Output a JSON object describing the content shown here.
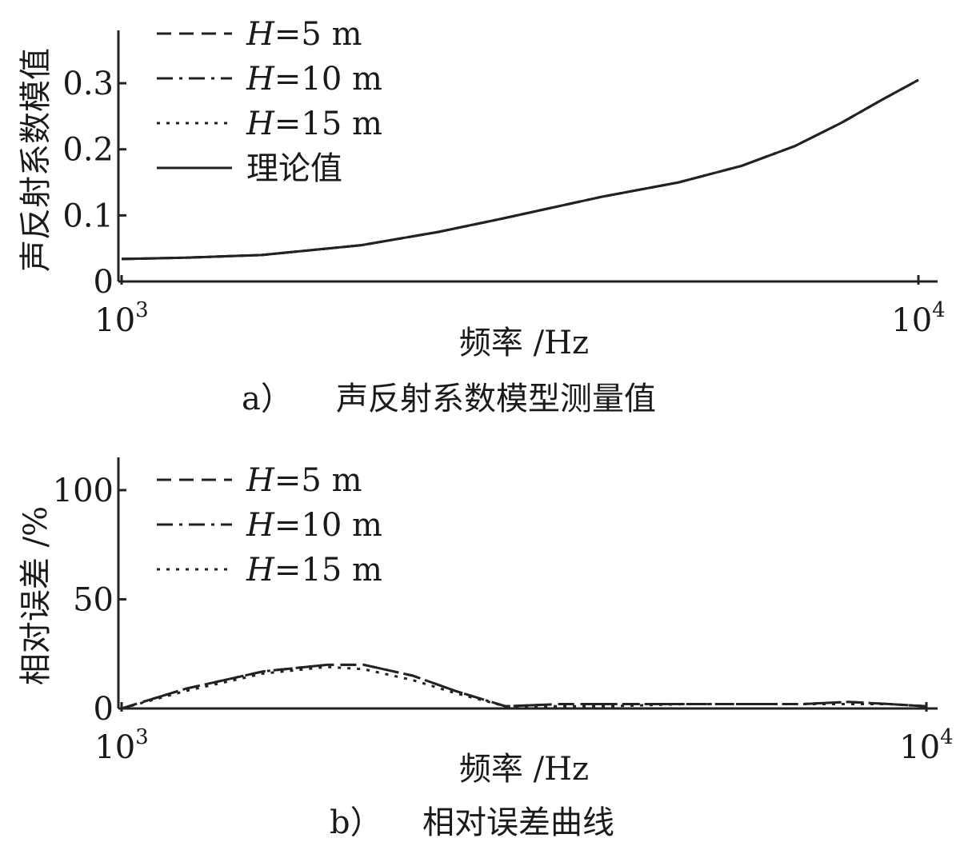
{
  "chart_data": [
    {
      "type": "line",
      "panel_label": "a）",
      "caption": "声反射系数模型测量值",
      "ylabel": "声反射系数模值",
      "xlabel": "频率 /Hz",
      "xscale": "log",
      "xlim": [
        1000,
        10000
      ],
      "ylim": [
        0,
        0.38
      ],
      "x_ticks": [
        {
          "base": "10",
          "exp": "3"
        },
        {
          "base": "10",
          "exp": "4"
        }
      ],
      "y_ticks": [
        "0",
        "0.1",
        "0.2",
        "0.3"
      ],
      "y_tick_values": [
        0,
        0.1,
        0.2,
        0.3
      ],
      "grid": false,
      "legend_position": "top-left",
      "x": [
        1000,
        1200,
        1500,
        2000,
        2500,
        3000,
        4000,
        5000,
        6000,
        7000,
        8000,
        9000,
        10000
      ],
      "series": [
        {
          "name": "H=5 m",
          "style": "dashed",
          "values": [
            0.034,
            0.036,
            0.04,
            0.055,
            0.075,
            0.095,
            0.128,
            0.15,
            0.175,
            0.205,
            0.24,
            0.275,
            0.305
          ]
        },
        {
          "name": "H=10 m",
          "style": "dashdot",
          "values": [
            0.034,
            0.036,
            0.04,
            0.055,
            0.075,
            0.095,
            0.128,
            0.15,
            0.175,
            0.205,
            0.24,
            0.275,
            0.305
          ]
        },
        {
          "name": "H=15 m",
          "style": "dotted",
          "values": [
            0.034,
            0.036,
            0.04,
            0.055,
            0.075,
            0.095,
            0.128,
            0.15,
            0.175,
            0.205,
            0.24,
            0.275,
            0.305
          ]
        },
        {
          "name": "理论值",
          "style": "solid",
          "values": [
            0.034,
            0.036,
            0.04,
            0.055,
            0.075,
            0.095,
            0.128,
            0.15,
            0.175,
            0.205,
            0.24,
            0.275,
            0.305
          ]
        }
      ]
    },
    {
      "type": "line",
      "panel_label": "b）",
      "caption": "相对误差曲线",
      "ylabel": "相对误差 /%",
      "xlabel": "频率 /Hz",
      "xscale": "log",
      "xlim": [
        1000,
        10000
      ],
      "ylim": [
        0,
        115
      ],
      "x_ticks": [
        {
          "base": "10",
          "exp": "3"
        },
        {
          "base": "10",
          "exp": "4"
        }
      ],
      "y_ticks": [
        "0",
        "50",
        "100"
      ],
      "y_tick_values": [
        0,
        50,
        100
      ],
      "grid": false,
      "legend_position": "top-left",
      "x": [
        1000,
        1200,
        1500,
        1800,
        2000,
        2300,
        2600,
        3000,
        3500,
        4000,
        5000,
        6000,
        7000,
        8000,
        9000,
        10000
      ],
      "series": [
        {
          "name": "H=5 m",
          "style": "dashed",
          "values": [
            0,
            9,
            17,
            20,
            20,
            15,
            8,
            1,
            2,
            2,
            2,
            2,
            2,
            3,
            2,
            1
          ]
        },
        {
          "name": "H=10 m",
          "style": "dashdot",
          "values": [
            0,
            9,
            17,
            20,
            20,
            15,
            8,
            1,
            2,
            2,
            2,
            2,
            2,
            3,
            2,
            1
          ]
        },
        {
          "name": "H=15 m",
          "style": "dotted",
          "values": [
            0,
            8,
            16,
            19,
            18,
            13,
            7,
            1,
            1,
            1,
            2,
            2,
            2,
            2,
            2,
            1
          ]
        }
      ]
    }
  ]
}
